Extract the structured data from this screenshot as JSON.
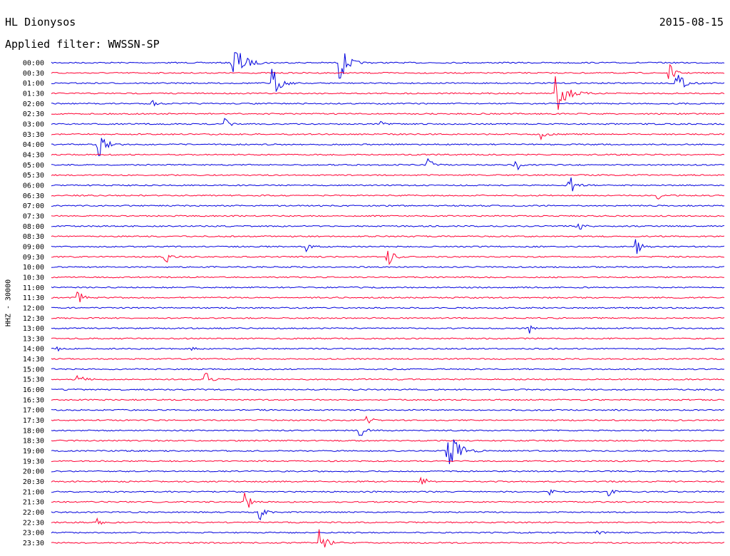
{
  "header": {
    "station": "HL Dionysos",
    "date": "2015-08-15",
    "filter_label": "Applied filter: WWSSN-SP"
  },
  "chart_data": {
    "type": "line",
    "title": "HL Dionysos",
    "date": "2015-08-15",
    "filter": "WWSSN-SP",
    "ylabel": "HHZ - 30000",
    "colors": [
      "#0000dd",
      "#ff0033"
    ],
    "traces": [
      {
        "time": "00:00",
        "events": [
          [
            0.27,
            1.0
          ],
          [
            0.43,
            0.7
          ]
        ]
      },
      {
        "time": "00:30",
        "events": [
          [
            0.92,
            0.3
          ]
        ]
      },
      {
        "time": "01:00",
        "events": [
          [
            0.33,
            0.6
          ],
          [
            0.93,
            0.5
          ]
        ]
      },
      {
        "time": "01:30",
        "events": [
          [
            0.75,
            1.0
          ]
        ]
      },
      {
        "time": "02:00",
        "events": [
          [
            0.15,
            0.15
          ]
        ]
      },
      {
        "time": "02:30",
        "events": []
      },
      {
        "time": "03:00",
        "events": [
          [
            0.26,
            0.2
          ],
          [
            0.49,
            0.1
          ]
        ]
      },
      {
        "time": "03:30",
        "events": [
          [
            0.73,
            0.2
          ]
        ]
      },
      {
        "time": "04:00",
        "events": [
          [
            0.07,
            0.6
          ]
        ]
      },
      {
        "time": "04:30",
        "events": []
      },
      {
        "time": "05:00",
        "events": [
          [
            0.56,
            0.3
          ],
          [
            0.69,
            0.3
          ]
        ]
      },
      {
        "time": "05:30",
        "events": []
      },
      {
        "time": "06:00",
        "events": [
          [
            0.77,
            0.4
          ]
        ]
      },
      {
        "time": "06:30",
        "events": [
          [
            0.9,
            0.2
          ]
        ]
      },
      {
        "time": "07:00",
        "events": []
      },
      {
        "time": "07:30",
        "events": []
      },
      {
        "time": "08:00",
        "events": [
          [
            0.78,
            0.35
          ]
        ]
      },
      {
        "time": "08:30",
        "events": []
      },
      {
        "time": "09:00",
        "events": [
          [
            0.38,
            0.2
          ],
          [
            0.87,
            0.3
          ]
        ]
      },
      {
        "time": "09:30",
        "events": [
          [
            0.17,
            0.3
          ],
          [
            0.5,
            0.4
          ]
        ]
      },
      {
        "time": "10:00",
        "events": []
      },
      {
        "time": "10:30",
        "events": []
      },
      {
        "time": "11:00",
        "events": []
      },
      {
        "time": "11:30",
        "events": [
          [
            0.04,
            0.3
          ]
        ]
      },
      {
        "time": "12:00",
        "events": []
      },
      {
        "time": "12:30",
        "events": []
      },
      {
        "time": "13:00",
        "events": [
          [
            0.71,
            0.2
          ]
        ]
      },
      {
        "time": "13:30",
        "events": []
      },
      {
        "time": "14:00",
        "events": [
          [
            0.01,
            0.1
          ],
          [
            0.21,
            0.1
          ]
        ]
      },
      {
        "time": "14:30",
        "events": []
      },
      {
        "time": "15:00",
        "events": []
      },
      {
        "time": "15:30",
        "events": [
          [
            0.04,
            0.3
          ],
          [
            0.23,
            0.3
          ]
        ]
      },
      {
        "time": "16:00",
        "events": []
      },
      {
        "time": "16:30",
        "events": []
      },
      {
        "time": "17:00",
        "events": []
      },
      {
        "time": "17:30",
        "events": [
          [
            0.47,
            0.2
          ]
        ]
      },
      {
        "time": "18:00",
        "events": [
          [
            0.46,
            0.25
          ]
        ]
      },
      {
        "time": "18:30",
        "events": []
      },
      {
        "time": "19:00",
        "events": [
          [
            0.59,
            1.0
          ]
        ]
      },
      {
        "time": "19:30",
        "events": []
      },
      {
        "time": "20:00",
        "events": []
      },
      {
        "time": "20:30",
        "events": [
          [
            0.55,
            0.3
          ]
        ]
      },
      {
        "time": "21:00",
        "events": [
          [
            0.74,
            0.15
          ],
          [
            0.83,
            0.15
          ]
        ]
      },
      {
        "time": "21:30",
        "events": [
          [
            0.29,
            0.35
          ]
        ]
      },
      {
        "time": "22:00",
        "events": [
          [
            0.31,
            0.3
          ]
        ]
      },
      {
        "time": "22:30",
        "events": [
          [
            0.07,
            0.2
          ]
        ]
      },
      {
        "time": "23:00",
        "events": [
          [
            0.81,
            0.15
          ]
        ]
      },
      {
        "time": "23:30",
        "events": [
          [
            0.4,
            0.5
          ]
        ]
      }
    ]
  }
}
